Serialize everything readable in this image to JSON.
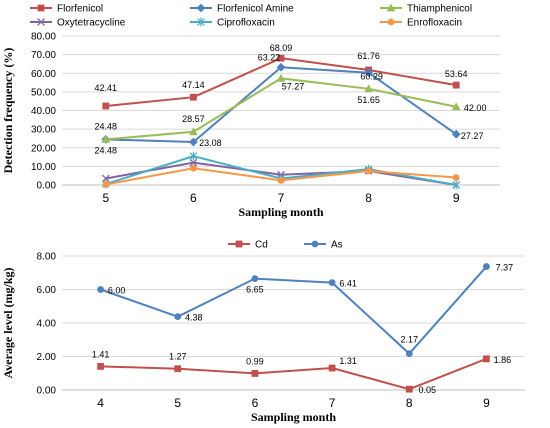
{
  "chart_data": [
    {
      "type": "line",
      "x": [
        5,
        6,
        7,
        8,
        9
      ],
      "xlabel": "Sampling month",
      "ylabel": "Detection frequency (%)",
      "ylim": [
        0,
        80
      ],
      "yticks": [
        "0.00",
        "10.00",
        "20.00",
        "30.00",
        "40.00",
        "50.00",
        "60.00",
        "70.00",
        "80.00"
      ],
      "grid": true,
      "legend": "top",
      "series": [
        {
          "name": "Florfenicol",
          "color": "#c0504d",
          "marker": "square",
          "values": [
            42.41,
            47.14,
            68.09,
            61.76,
            53.64
          ],
          "labels": [
            "42.41",
            "47.14",
            "68.09",
            "61.76",
            "53.64"
          ]
        },
        {
          "name": "Florfenicol Amine",
          "color": "#4f81bd",
          "marker": "diamond",
          "values": [
            24.48,
            23.08,
            63.22,
            60.29,
            27.27
          ],
          "labels": [
            "24.48",
            "23.08",
            "63.22",
            "60.29",
            "27.27"
          ]
        },
        {
          "name": "Thiamphenicol",
          "color": "#9bbb59",
          "marker": "triangle",
          "values": [
            24.48,
            28.57,
            57.27,
            51.65,
            42.0
          ],
          "labels": [
            "24.48",
            "28.57",
            "57.27",
            "51.65",
            "42.00"
          ]
        },
        {
          "name": "Oxytetracycline",
          "color": "#8064a2",
          "marker": "x",
          "values": [
            3.5,
            12.0,
            5.5,
            7.5,
            0.0
          ],
          "labels": []
        },
        {
          "name": "Ciprofloxacin",
          "color": "#4bacc6",
          "marker": "star",
          "values": [
            0.5,
            15.5,
            3.5,
            8.5,
            0.0
          ],
          "labels": []
        },
        {
          "name": "Enrofloxacin",
          "color": "#f79646",
          "marker": "circle",
          "values": [
            0.3,
            9.0,
            2.5,
            7.5,
            4.0
          ],
          "labels": []
        }
      ]
    },
    {
      "type": "line",
      "x": [
        4,
        5,
        6,
        7,
        8,
        9
      ],
      "xlabel": "Sampling month",
      "ylabel": "Average level (mg/kg)",
      "ylim": [
        0,
        8
      ],
      "yticks": [
        "0.00",
        "2.00",
        "4.00",
        "6.00",
        "8.00"
      ],
      "grid": true,
      "legend": "top",
      "series": [
        {
          "name": "Cd",
          "color": "#c0504d",
          "marker": "square",
          "values": [
            1.41,
            1.27,
            0.99,
            1.31,
            0.05,
            1.86
          ],
          "labels": [
            "1.41",
            "1.27",
            "0.99",
            "1.31",
            "0.05",
            "1.86"
          ]
        },
        {
          "name": "As",
          "color": "#4f81bd",
          "marker": "circle",
          "values": [
            6.0,
            4.38,
            6.65,
            6.41,
            2.17,
            7.37
          ],
          "labels": [
            "6.00",
            "4.38",
            "6.65",
            "6.41",
            "2.17",
            "7.37"
          ]
        }
      ]
    }
  ]
}
